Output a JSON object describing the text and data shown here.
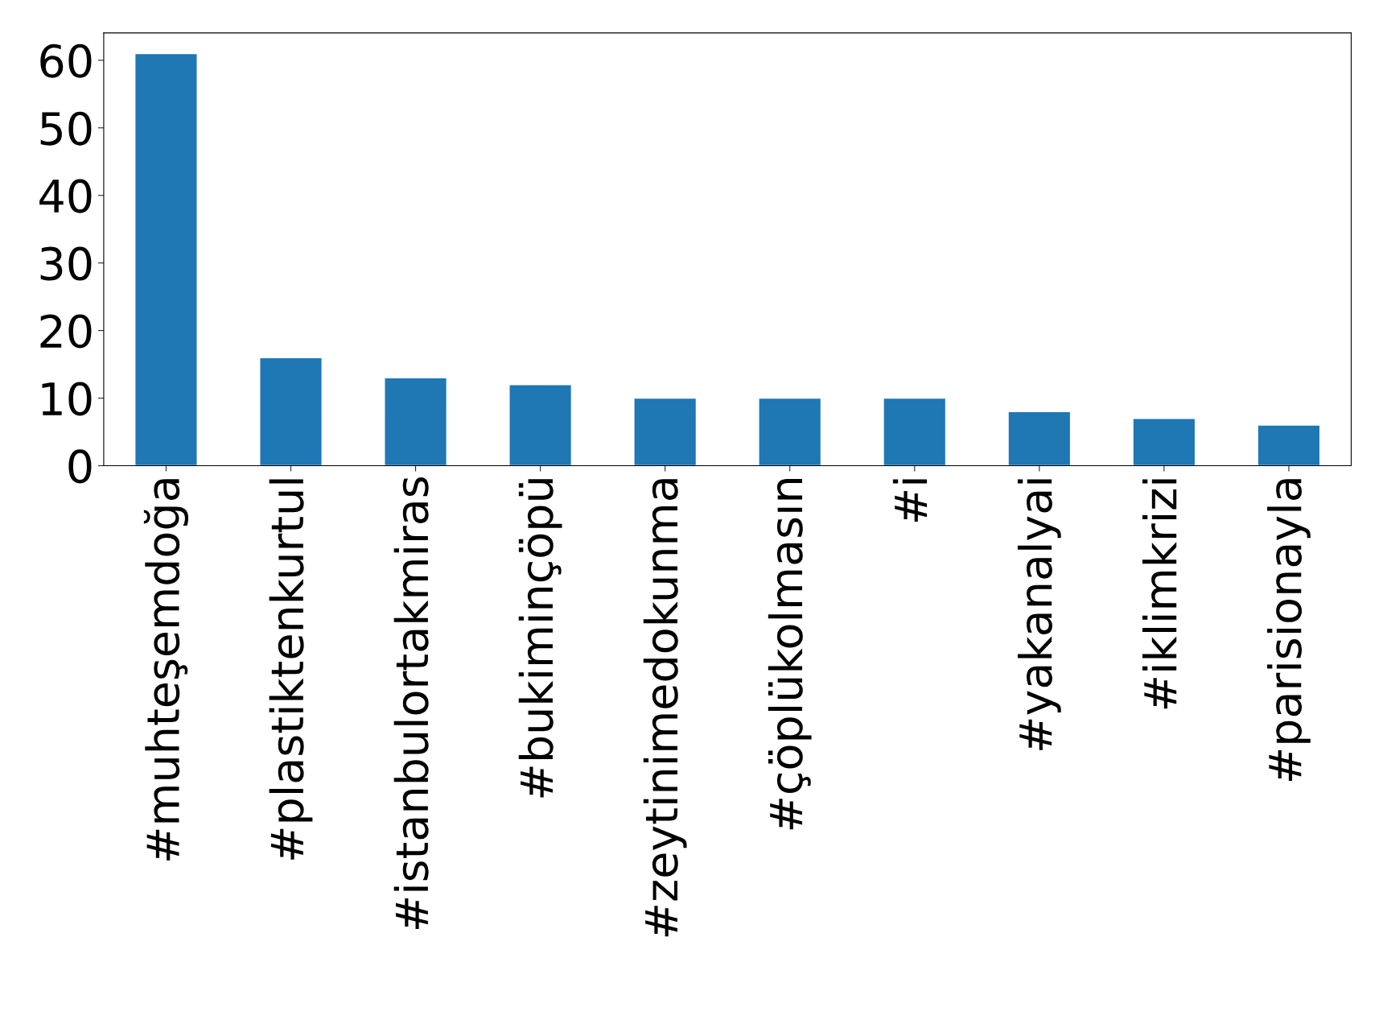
{
  "chart_data": {
    "type": "bar",
    "categories": [
      "#muhteşemdoğa",
      "#plastiktenkurtul",
      "#istanbulortakmiras",
      "#bukiminçöpü",
      "#zeytinimedokunma",
      "#çöplükolmasın",
      "#i",
      "#yakanalyai",
      "#iklimkrizi",
      "#parisionayla"
    ],
    "values": [
      61,
      16,
      13,
      12,
      10,
      10,
      10,
      8,
      7,
      6
    ],
    "color": "#1f77b4",
    "ylim": [
      0,
      64.05
    ],
    "yticks": [
      0,
      10,
      20,
      30,
      40,
      50,
      60
    ],
    "grid": false
  }
}
